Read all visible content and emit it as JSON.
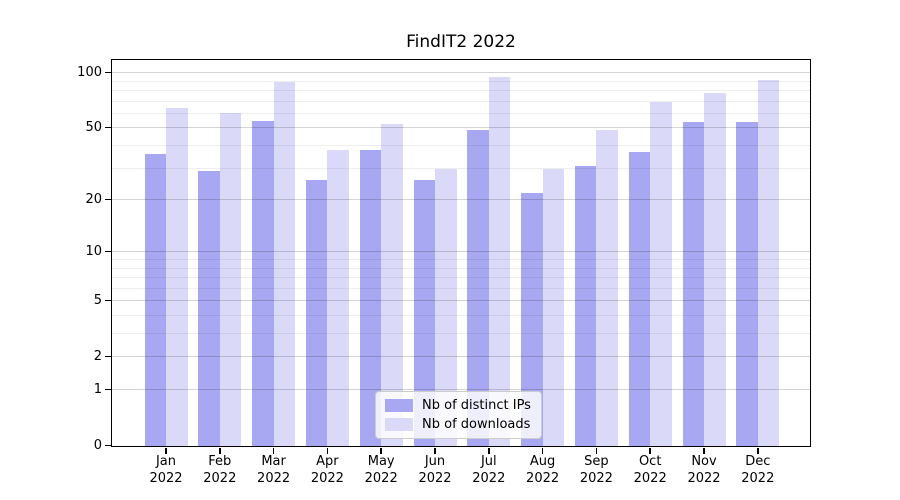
{
  "title": "FindIT2 2022",
  "chart_data": {
    "type": "bar",
    "title": "FindIT2 2022",
    "categories": [
      "Jan 2022",
      "Feb 2022",
      "Mar 2022",
      "Apr 2022",
      "May 2022",
      "Jun 2022",
      "Jul 2022",
      "Aug 2022",
      "Sep 2022",
      "Oct 2022",
      "Nov 2022",
      "Dec 2022"
    ],
    "months": [
      "Jan",
      "Feb",
      "Mar",
      "Apr",
      "May",
      "Jun",
      "Jul",
      "Aug",
      "Sep",
      "Oct",
      "Nov",
      "Dec"
    ],
    "year": "2022",
    "series": [
      {
        "name": "Nb of distinct IPs",
        "color": "#a8a8f2",
        "values": [
          36,
          29,
          55,
          26,
          38,
          26,
          49,
          22,
          31,
          37,
          54,
          54
        ]
      },
      {
        "name": "Nb of downloads",
        "color": "#dadaf8",
        "values": [
          65,
          61,
          90,
          38,
          53,
          30,
          95,
          30,
          49,
          70,
          78,
          92
        ]
      }
    ],
    "xlabel": "",
    "ylabel": "",
    "y_scale": "log1p",
    "y_ticks": [
      0,
      1,
      2,
      5,
      10,
      20,
      50,
      100
    ],
    "y_minor_gridlines": [
      3,
      4,
      6,
      7,
      8,
      9,
      30,
      40,
      60,
      70,
      80,
      90
    ],
    "ylim": [
      0,
      117
    ],
    "grid": true,
    "legend_position": "lower center"
  }
}
